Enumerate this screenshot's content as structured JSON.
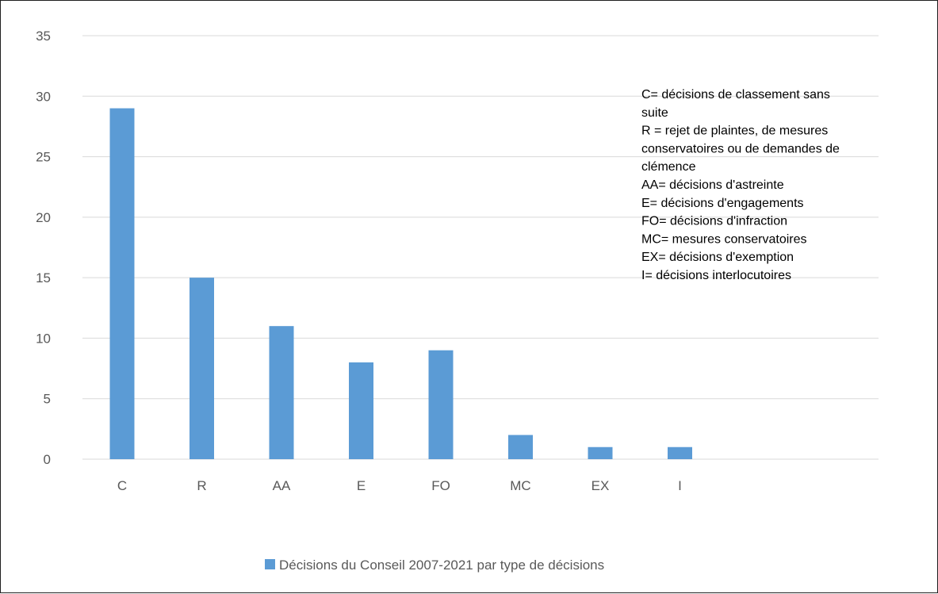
{
  "chart_data": {
    "type": "bar",
    "categories": [
      "C",
      "R",
      "AA",
      "E",
      "FO",
      "MC",
      "EX",
      "I"
    ],
    "series": [
      {
        "name": "Décisions du Conseil 2007-2021 par type de décisions",
        "values": [
          29,
          15,
          11,
          8,
          9,
          2,
          1,
          1
        ],
        "color": "#5b9bd5"
      }
    ],
    "title": "",
    "xlabel": "",
    "ylabel": "",
    "ylim": [
      0,
      35
    ],
    "yticks": [
      0,
      5,
      10,
      15,
      20,
      25,
      30,
      35
    ],
    "grid": true,
    "grid_color": "#d9d9d9",
    "legend_position": "bottom",
    "annotation": [
      "C= décisions de classement sans",
      "suite",
      "R = rejet de plaintes, de mesures",
      "conservatoires ou de demandes de",
      "clémence",
      "AA= décisions d'astreinte",
      "E= décisions d'engagements",
      "FO= décisions d'infraction",
      "MC= mesures conservatoires",
      "EX= décisions d'exemption",
      "I= décisions interlocutoires"
    ]
  }
}
